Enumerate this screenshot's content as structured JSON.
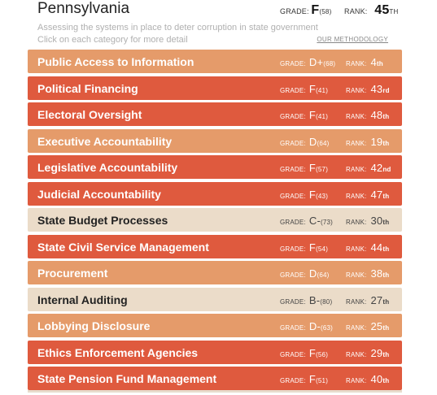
{
  "header": {
    "state": "Pennsylvania",
    "grade_label": "GRADE:",
    "grade_value": "F",
    "grade_score": "(58)",
    "rank_label": "RANK:",
    "rank_value": "45",
    "rank_suffix": "TH",
    "subtitle": "Assessing the systems in place to deter corruption in state government",
    "instruction": "Click on each category for more detail",
    "methodology_link": "OUR METHODOLOGY"
  },
  "colors": {
    "red": "#df5a3e",
    "orange": "#e59b6a",
    "beige": "#ebdcc9"
  },
  "categories": [
    {
      "name": "Public Access to Information",
      "grade": "D+",
      "score": "(68)",
      "rank": "4",
      "suffix": "th",
      "color": "orange"
    },
    {
      "name": "Political Financing",
      "grade": "F",
      "score": "(41)",
      "rank": "43",
      "suffix": "rd",
      "color": "red"
    },
    {
      "name": "Electoral Oversight",
      "grade": "F",
      "score": "(41)",
      "rank": "48",
      "suffix": "th",
      "color": "red"
    },
    {
      "name": "Executive Accountability",
      "grade": "D",
      "score": "(64)",
      "rank": "19",
      "suffix": "th",
      "color": "orange"
    },
    {
      "name": "Legislative Accountability",
      "grade": "F",
      "score": "(57)",
      "rank": "42",
      "suffix": "nd",
      "color": "red"
    },
    {
      "name": "Judicial Accountability",
      "grade": "F",
      "score": "(43)",
      "rank": "47",
      "suffix": "th",
      "color": "red"
    },
    {
      "name": "State Budget Processes",
      "grade": "C-",
      "score": "(73)",
      "rank": "30",
      "suffix": "th",
      "color": "beige"
    },
    {
      "name": "State Civil Service Management",
      "grade": "F",
      "score": "(54)",
      "rank": "44",
      "suffix": "th",
      "color": "red"
    },
    {
      "name": "Procurement",
      "grade": "D",
      "score": "(64)",
      "rank": "38",
      "suffix": "th",
      "color": "orange"
    },
    {
      "name": "Internal Auditing",
      "grade": "B-",
      "score": "(80)",
      "rank": "27",
      "suffix": "th",
      "color": "beige"
    },
    {
      "name": "Lobbying Disclosure",
      "grade": "D-",
      "score": "(63)",
      "rank": "25",
      "suffix": "th",
      "color": "orange"
    },
    {
      "name": "Ethics Enforcement Agencies",
      "grade": "F",
      "score": "(56)",
      "rank": "29",
      "suffix": "th",
      "color": "red"
    },
    {
      "name": "State Pension Fund Management",
      "grade": "F",
      "score": "(51)",
      "rank": "40",
      "suffix": "th",
      "color": "red"
    }
  ],
  "labels": {
    "grade": "GRADE:",
    "rank": "RANK:"
  }
}
